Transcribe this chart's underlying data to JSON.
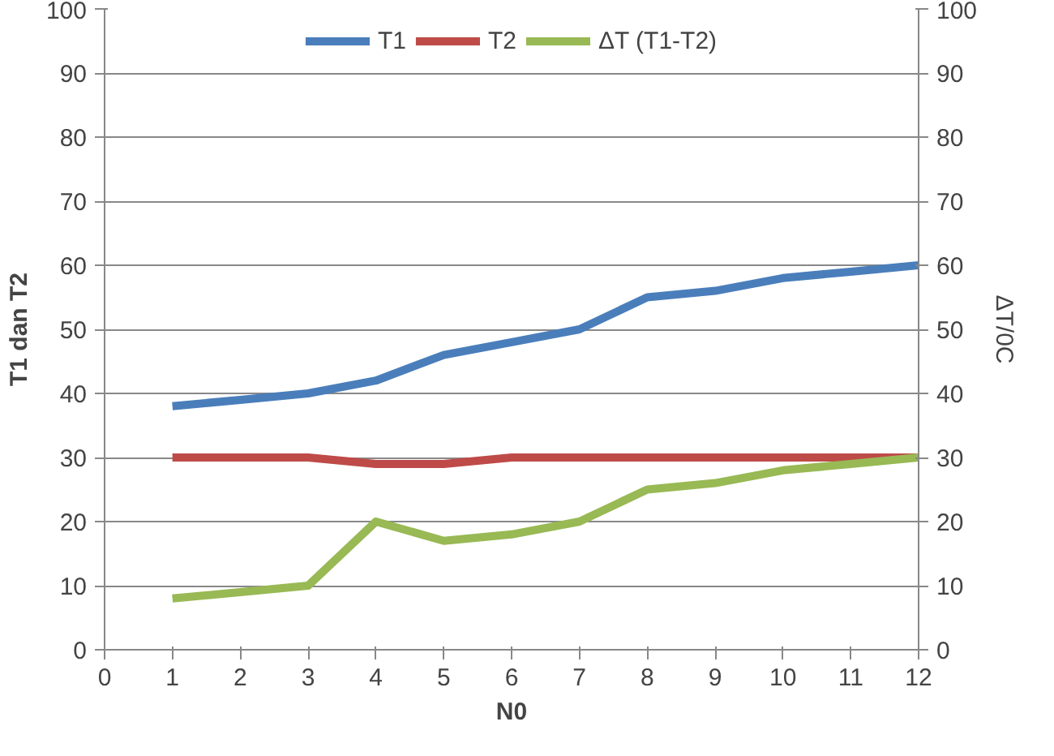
{
  "chart_data": {
    "type": "line",
    "xlabel": "N0",
    "ylabel": "T1 dan T2",
    "y2label": "ΔT/0C",
    "x": [
      1,
      2,
      3,
      4,
      5,
      6,
      7,
      8,
      9,
      10,
      11,
      12
    ],
    "xlim": [
      0,
      12
    ],
    "xticks": [
      0,
      1,
      2,
      3,
      4,
      5,
      6,
      7,
      8,
      9,
      10,
      11,
      12
    ],
    "ylim": [
      0,
      100
    ],
    "yticks": [
      0,
      10,
      20,
      30,
      40,
      50,
      60,
      70,
      80,
      90,
      100
    ],
    "y2lim": [
      0,
      100
    ],
    "y2ticks": [
      0,
      10,
      20,
      30,
      40,
      50,
      60,
      70,
      80,
      90,
      100
    ],
    "grid": "y",
    "legend": "top",
    "marker": "none",
    "line_style": "solid",
    "series": [
      {
        "name": "T1",
        "color": "#4a7ebb",
        "values": [
          38,
          39,
          40,
          42,
          46,
          48,
          50,
          55,
          56,
          58,
          59,
          60
        ]
      },
      {
        "name": "T2",
        "color": "#be4b48",
        "values": [
          30,
          30,
          30,
          29,
          29,
          30,
          30,
          30,
          30,
          30,
          30,
          30
        ]
      },
      {
        "name": "ΔT (T1-T2)",
        "color": "#98b954",
        "values": [
          8,
          9,
          10,
          20,
          17,
          18,
          20,
          25,
          26,
          28,
          29,
          30
        ]
      }
    ]
  }
}
